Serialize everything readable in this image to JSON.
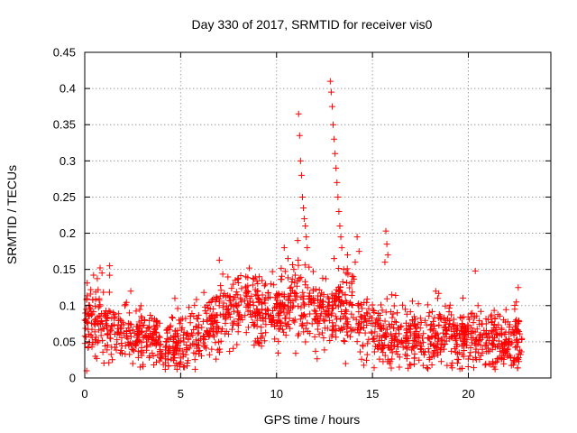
{
  "chart_data": {
    "type": "scatter",
    "title": "Day 330 of 2017, SRMTID for receiver vis0",
    "xlabel": "GPS time / hours",
    "ylabel": "SRMTID / TECUs",
    "xlim": [
      0,
      24.3
    ],
    "ylim": [
      0,
      0.45
    ],
    "grid": true,
    "marker": "plus",
    "color": "#ff0000",
    "x_ticks": [
      0,
      5,
      10,
      15,
      20
    ],
    "x_tick_labels": [
      "0",
      "5",
      "10",
      "15",
      "20"
    ],
    "y_ticks": [
      0,
      0.05,
      0.1,
      0.15,
      0.2,
      0.25,
      0.3,
      0.35,
      0.4,
      0.45
    ],
    "y_tick_labels": [
      "0",
      "0.05",
      "0.1",
      "0.15",
      "0.2",
      "0.25",
      "0.3",
      "0.35",
      "0.4",
      "0.45"
    ],
    "x_range_data": [
      0,
      22.8
    ],
    "trend": [
      [
        0.0,
        0.075
      ],
      [
        0.5,
        0.08
      ],
      [
        1.0,
        0.08
      ],
      [
        1.5,
        0.065
      ],
      [
        2.0,
        0.06
      ],
      [
        2.5,
        0.065
      ],
      [
        3.0,
        0.058
      ],
      [
        3.5,
        0.055
      ],
      [
        4.0,
        0.05
      ],
      [
        4.5,
        0.048
      ],
      [
        5.0,
        0.048
      ],
      [
        5.5,
        0.055
      ],
      [
        6.0,
        0.06
      ],
      [
        6.5,
        0.075
      ],
      [
        7.0,
        0.085
      ],
      [
        7.5,
        0.09
      ],
      [
        8.0,
        0.095
      ],
      [
        8.5,
        0.1
      ],
      [
        9.0,
        0.09
      ],
      [
        9.5,
        0.085
      ],
      [
        10.0,
        0.09
      ],
      [
        10.5,
        0.1
      ],
      [
        11.0,
        0.105
      ],
      [
        11.5,
        0.105
      ],
      [
        12.0,
        0.095
      ],
      [
        12.5,
        0.09
      ],
      [
        13.0,
        0.09
      ],
      [
        13.5,
        0.095
      ],
      [
        14.0,
        0.095
      ],
      [
        14.5,
        0.085
      ],
      [
        15.0,
        0.065
      ],
      [
        15.5,
        0.06
      ],
      [
        16.0,
        0.06
      ],
      [
        16.5,
        0.06
      ],
      [
        17.0,
        0.06
      ],
      [
        17.5,
        0.055
      ],
      [
        18.0,
        0.05
      ],
      [
        18.5,
        0.06
      ],
      [
        19.0,
        0.06
      ],
      [
        19.5,
        0.055
      ],
      [
        20.0,
        0.06
      ],
      [
        20.5,
        0.058
      ],
      [
        21.0,
        0.055
      ],
      [
        21.5,
        0.05
      ],
      [
        22.0,
        0.05
      ],
      [
        22.5,
        0.055
      ],
      [
        22.8,
        0.05
      ]
    ],
    "spread": 0.025,
    "points_per_hour": 75,
    "notable_points": [
      [
        0.8,
        0.152
      ],
      [
        1.3,
        0.155
      ],
      [
        1.3,
        0.142
      ],
      [
        0.9,
        0.145
      ],
      [
        2.4,
        0.12
      ],
      [
        4.7,
        0.11
      ],
      [
        8.4,
        0.14
      ],
      [
        9.1,
        0.14
      ],
      [
        9.7,
        0.13
      ],
      [
        10.4,
        0.18
      ],
      [
        10.6,
        0.165
      ],
      [
        10.9,
        0.15
      ],
      [
        11.15,
        0.365
      ],
      [
        11.2,
        0.335
      ],
      [
        11.25,
        0.3
      ],
      [
        11.3,
        0.28
      ],
      [
        11.35,
        0.25
      ],
      [
        11.4,
        0.235
      ],
      [
        11.45,
        0.22
      ],
      [
        11.5,
        0.21
      ],
      [
        11.55,
        0.195
      ],
      [
        11.1,
        0.19
      ],
      [
        11.6,
        0.18
      ],
      [
        12.8,
        0.41
      ],
      [
        12.85,
        0.395
      ],
      [
        12.9,
        0.375
      ],
      [
        12.95,
        0.35
      ],
      [
        13.0,
        0.33
      ],
      [
        13.05,
        0.31
      ],
      [
        13.1,
        0.29
      ],
      [
        13.15,
        0.27
      ],
      [
        13.2,
        0.25
      ],
      [
        13.25,
        0.23
      ],
      [
        13.3,
        0.21
      ],
      [
        13.35,
        0.195
      ],
      [
        13.4,
        0.18
      ],
      [
        13.0,
        0.165
      ],
      [
        13.5,
        0.15
      ],
      [
        13.7,
        0.17
      ],
      [
        14.2,
        0.195
      ],
      [
        14.3,
        0.175
      ],
      [
        14.1,
        0.16
      ],
      [
        14.0,
        0.14
      ],
      [
        15.7,
        0.203
      ],
      [
        15.75,
        0.185
      ],
      [
        15.8,
        0.17
      ],
      [
        15.65,
        0.16
      ],
      [
        16.0,
        0.115
      ],
      [
        18.3,
        0.12
      ],
      [
        18.4,
        0.11
      ],
      [
        20.5,
        0.1
      ],
      [
        22.6,
        0.125
      ],
      [
        22.5,
        0.105
      ],
      [
        0.1,
        0.01
      ],
      [
        2.9,
        0.015
      ],
      [
        3.6,
        0.018
      ],
      [
        4.2,
        0.012
      ],
      [
        5.2,
        0.015
      ],
      [
        13.6,
        0.02
      ],
      [
        15.9,
        0.02
      ],
      [
        16.4,
        0.015
      ],
      [
        18.1,
        0.018
      ]
    ]
  }
}
